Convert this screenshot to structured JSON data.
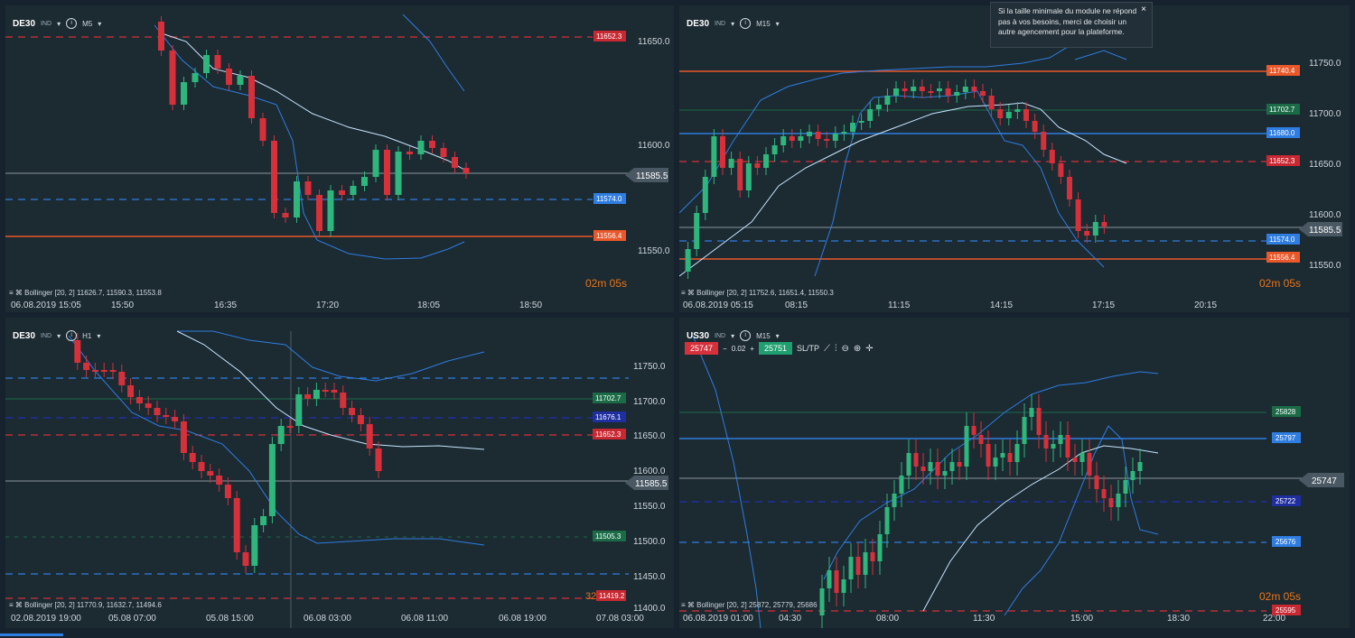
{
  "panels": [
    {
      "id": "tl",
      "symbol": "DE30",
      "tag": "IND",
      "timeframe": "M5",
      "legend": "Bollinger [20, 2] 11626.7, 11590.3, 11553.8",
      "countdown": "02m 05s",
      "date_label": "06.08.2019 15:05",
      "x_ticks": [
        "15:50",
        "16:35",
        "17:20",
        "18:05",
        "18:50"
      ],
      "price_ticks": [
        "11650.0",
        "11600.0",
        "11550.0"
      ],
      "current_price": "11585.5",
      "levels": [
        {
          "value": "11652.3",
          "color": "#d6303b"
        },
        {
          "value": "11574.0",
          "color": "#2f7de0"
        },
        {
          "value": "11556.4",
          "color": "#e8582a"
        }
      ]
    },
    {
      "id": "tr",
      "symbol": "DE30",
      "tag": "IND",
      "timeframe": "M15",
      "legend": "Bollinger [20, 2] 11752.6, 11651.4, 11550.3",
      "countdown": "02m 05s",
      "date_label": "06.08.2019 05:15",
      "x_ticks": [
        "08:15",
        "11:15",
        "14:15",
        "17:15",
        "20:15"
      ],
      "price_ticks": [
        "11750.0",
        "11700.0",
        "11650.0",
        "11600.0",
        "11550.0"
      ],
      "current_price": "11585.5",
      "levels": [
        {
          "value": "11740.4",
          "color": "#e8582a"
        },
        {
          "value": "11702.7",
          "color": "#1b6b47"
        },
        {
          "value": "11680.0",
          "color": "#2f7de0"
        },
        {
          "value": "11652.3",
          "color": "#d6303b"
        },
        {
          "value": "11574.0",
          "color": "#2f7de0"
        },
        {
          "value": "11556.4",
          "color": "#e8582a"
        }
      ],
      "tooltip": "Si la taille minimale du module ne répond pas à vos besoins, merci de choisir un autre agencement pour la plateforme.",
      "close_glyph": "×"
    },
    {
      "id": "bl",
      "symbol": "DE30",
      "tag": "IND",
      "timeframe": "H1",
      "legend": "Bollinger [20, 2] 11770.9, 11632.7, 11494.6",
      "date_label": "02.08.2019 19:00",
      "x_ticks": [
        "05.08 07:00",
        "05.08 15:00",
        "06.08 03:00",
        "06.08 11:00",
        "06.08 19:00",
        "07.08 03:00"
      ],
      "price_ticks": [
        "11750.0",
        "11700.0",
        "11650.0",
        "11600.0",
        "11550.0",
        "11500.0",
        "11450.0",
        "11400.0"
      ],
      "current_price": "11585.5",
      "levels": [
        {
          "value": "11702.7",
          "color": "#1b6b47"
        },
        {
          "value": "11676.1",
          "color": "#1f2fa0"
        },
        {
          "value": "11652.3",
          "color": "#d6303b"
        },
        {
          "value": "11505.3",
          "color": "#1b6b47"
        },
        {
          "value": "11419.2",
          "color": "#d6303b"
        }
      ],
      "overlay_text": "32"
    },
    {
      "id": "br",
      "symbol": "US30",
      "tag": "IND",
      "timeframe": "M15",
      "legend": "Bollinger [20, 2] 25872, 25779, 25686",
      "countdown": "02m 05s",
      "date_label": "06.08.2019 01:00",
      "x_ticks": [
        "04:30",
        "08:00",
        "11:30",
        "15:00",
        "18:30",
        "22:00"
      ],
      "current_price": "25747",
      "levels": [
        {
          "value": "25828",
          "color": "#1b6b47"
        },
        {
          "value": "25797",
          "color": "#2f7de0"
        },
        {
          "value": "25722",
          "color": "#1f2fa0"
        },
        {
          "value": "25676",
          "color": "#2f7de0"
        },
        {
          "value": "25595",
          "color": "#d6303b"
        }
      ],
      "trade": {
        "sell": "25747",
        "spread": "0.02",
        "buy": "25751",
        "sltp": "SL/TP",
        "minus": "−",
        "plus": "+"
      }
    }
  ]
}
